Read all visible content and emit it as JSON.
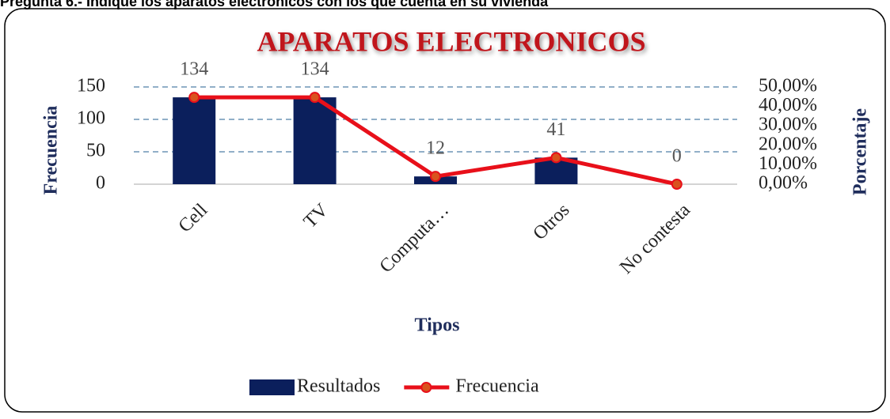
{
  "header": {
    "title": "Pregunta 6.- Indique los aparatos electrónicos con los que cuenta en su vivienda"
  },
  "chart_data": {
    "type": "bar",
    "title": "APARATOS ELECTRONICOS",
    "x_label": "Tipos",
    "y_label": "Frecuencia",
    "y2_label": "Porcentaje",
    "categories": [
      "Cell",
      "TV",
      "Computa…",
      "Otros",
      "No contesta"
    ],
    "series": [
      {
        "name": "Resultados",
        "color": "#0b1f5c",
        "type": "bar",
        "values": [
          134,
          134,
          12,
          41,
          0
        ]
      },
      {
        "name": "Frecuencia",
        "color": "#e8101a",
        "type": "line",
        "values": [
          134,
          134,
          12,
          41,
          0
        ]
      }
    ],
    "ylim": [
      0,
      150
    ],
    "yticks": [
      0,
      50,
      100,
      150
    ],
    "y2lim": [
      0,
      50
    ],
    "y2ticks": [
      {
        "value": 0,
        "label": "0,00%"
      },
      {
        "value": 10,
        "label": "10,00%"
      },
      {
        "value": 20,
        "label": "20,00%"
      },
      {
        "value": 30,
        "label": "30,00%"
      },
      {
        "value": 40,
        "label": "40,00%"
      },
      {
        "value": 50,
        "label": "50,00%"
      }
    ],
    "grid": true,
    "legend": "bottom"
  }
}
